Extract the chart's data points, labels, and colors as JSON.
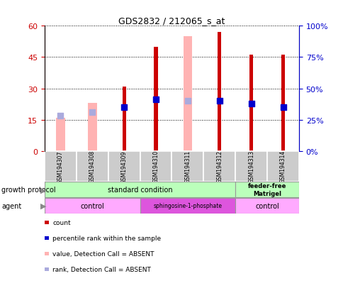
{
  "title": "GDS2832 / 212065_s_at",
  "samples": [
    "GSM194307",
    "GSM194308",
    "GSM194309",
    "GSM194310",
    "GSM194311",
    "GSM194312",
    "GSM194313",
    "GSM194314"
  ],
  "count_values": [
    null,
    null,
    31,
    50,
    null,
    57,
    46,
    46
  ],
  "count_color": "#cc0000",
  "absent_value_values": [
    16,
    23,
    null,
    null,
    55,
    null,
    null,
    null
  ],
  "absent_value_color": "#ffb3b3",
  "percentile_rank_values": [
    null,
    null,
    35,
    41,
    null,
    40,
    38,
    35
  ],
  "percentile_rank_color": "#0000cc",
  "absent_rank_values": [
    28,
    31,
    null,
    null,
    40,
    null,
    null,
    null
  ],
  "absent_rank_color": "#aaaadd",
  "ylim_left": [
    0,
    60
  ],
  "ylim_right": [
    0,
    100
  ],
  "yticks_left": [
    0,
    15,
    30,
    45,
    60
  ],
  "yticks_right": [
    0,
    25,
    50,
    75,
    100
  ],
  "ytick_labels_right": [
    "0%",
    "25%",
    "50%",
    "75%",
    "100%"
  ],
  "label_color_left": "#cc0000",
  "label_color_right": "#0000cc",
  "growth_protocol_label": "growth protocol",
  "agent_label": "agent",
  "sample_box_color": "#cccccc",
  "standard_condition_color": "#bbffbb",
  "feeder_free_color": "#bbffbb",
  "control_color": "#ffaaff",
  "sphingo_color": "#dd55dd",
  "legend_items": [
    {
      "label": "count",
      "color": "#cc0000"
    },
    {
      "label": "percentile rank within the sample",
      "color": "#0000cc"
    },
    {
      "label": "value, Detection Call = ABSENT",
      "color": "#ffb3b3"
    },
    {
      "label": "rank, Detection Call = ABSENT",
      "color": "#aaaadd"
    }
  ]
}
